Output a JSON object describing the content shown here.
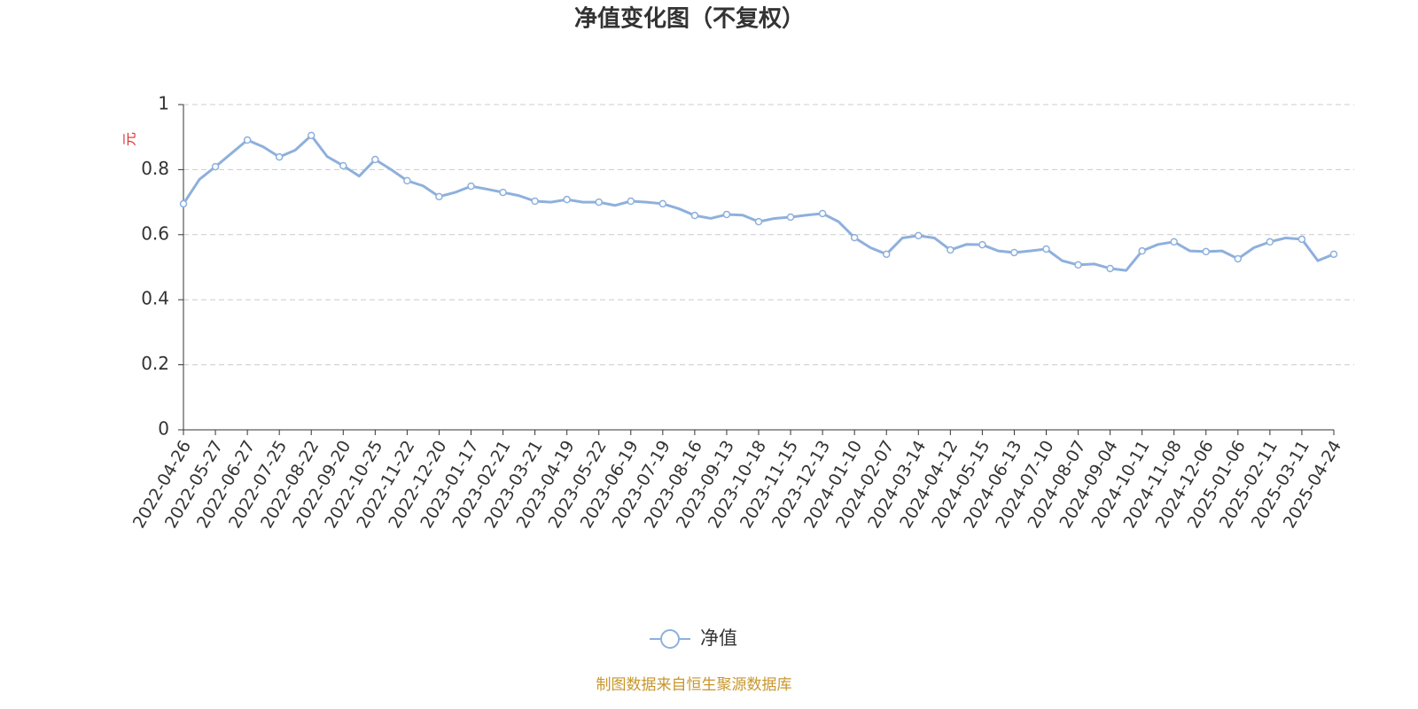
{
  "chart_data": {
    "type": "line",
    "title": "净值变化图（不复权）",
    "y_label": "元",
    "source": "制图数据来自恒生聚源数据库",
    "categories": [
      "2022-04-26",
      null,
      "2022-05-27",
      null,
      "2022-06-27",
      null,
      "2022-07-25",
      null,
      "2022-08-22",
      null,
      "2022-09-20",
      null,
      "2022-10-25",
      null,
      "2022-11-22",
      null,
      "2022-12-20",
      null,
      "2023-01-17",
      null,
      "2023-02-21",
      null,
      "2023-03-21",
      null,
      "2023-04-19",
      null,
      "2023-05-22",
      null,
      "2023-06-19",
      null,
      "2023-07-19",
      null,
      "2023-08-16",
      null,
      "2023-09-13",
      null,
      "2023-10-18",
      null,
      "2023-11-15",
      null,
      "2023-12-13",
      null,
      "2024-01-10",
      null,
      "2024-02-07",
      null,
      "2024-03-14",
      null,
      "2024-04-12",
      null,
      "2024-05-15",
      null,
      "2024-06-13",
      null,
      "2024-07-10",
      null,
      "2024-08-07",
      null,
      "2024-09-04",
      null,
      "2024-10-11",
      null,
      "2024-11-08",
      null,
      "2024-12-06",
      null,
      "2025-01-06",
      null,
      "2025-02-11",
      null,
      "2025-03-11",
      null,
      "2025-04-24"
    ],
    "series": [
      {
        "name": "净值",
        "color": "#8eb0dc",
        "values": [
          0.695,
          0.77,
          0.809,
          0.85,
          0.891,
          0.87,
          0.839,
          0.86,
          0.905,
          0.84,
          0.812,
          0.78,
          0.831,
          0.8,
          0.766,
          0.75,
          0.717,
          0.73,
          0.749,
          0.74,
          0.73,
          0.72,
          0.703,
          0.7,
          0.708,
          0.7,
          0.7,
          0.69,
          0.703,
          0.7,
          0.695,
          0.68,
          0.659,
          0.65,
          0.662,
          0.66,
          0.64,
          0.65,
          0.654,
          0.66,
          0.665,
          0.64,
          0.591,
          0.56,
          0.54,
          0.59,
          0.597,
          0.59,
          0.553,
          0.57,
          0.569,
          0.55,
          0.545,
          0.55,
          0.556,
          0.52,
          0.507,
          0.51,
          0.496,
          0.49,
          0.55,
          0.57,
          0.578,
          0.55,
          0.548,
          0.55,
          0.526,
          0.56,
          0.578,
          0.59,
          0.586,
          0.52,
          0.54
        ]
      }
    ],
    "ylim": [
      0,
      1
    ],
    "yticks": [
      0,
      0.2,
      0.4,
      0.6,
      0.8,
      1
    ],
    "grid": true,
    "legend": "bottom"
  }
}
